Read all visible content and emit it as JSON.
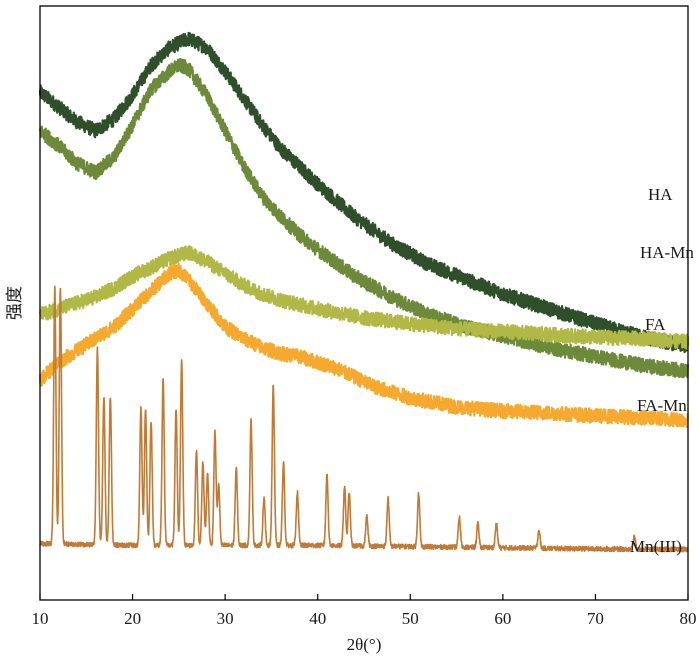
{
  "chart_data": {
    "type": "line",
    "title": "",
    "xlabel": "2θ(°)",
    "ylabel": "强度",
    "xlim": [
      10,
      80
    ],
    "x_ticks": [
      10,
      20,
      30,
      40,
      50,
      60,
      70,
      80
    ],
    "y_ticks_shown": false,
    "grid": false,
    "legend": "inline labels at right end of each trace",
    "series": [
      {
        "name": "HA",
        "color": "#2e4f2a",
        "points": [
          [
            10,
            0.855
          ],
          [
            12,
            0.83
          ],
          [
            14,
            0.805
          ],
          [
            16,
            0.79
          ],
          [
            18,
            0.81
          ],
          [
            20,
            0.85
          ],
          [
            22,
            0.9
          ],
          [
            24,
            0.93
          ],
          [
            26,
            0.945
          ],
          [
            28,
            0.93
          ],
          [
            30,
            0.89
          ],
          [
            32,
            0.845
          ],
          [
            34,
            0.8
          ],
          [
            36,
            0.76
          ],
          [
            38,
            0.73
          ],
          [
            40,
            0.7
          ],
          [
            44,
            0.645
          ],
          [
            48,
            0.6
          ],
          [
            52,
            0.565
          ],
          [
            56,
            0.54
          ],
          [
            60,
            0.515
          ],
          [
            65,
            0.49
          ],
          [
            70,
            0.465
          ],
          [
            75,
            0.443
          ],
          [
            80,
            0.427
          ]
        ]
      },
      {
        "name": "HA-Mn",
        "color": "#6d8a3a",
        "points": [
          [
            10,
            0.79
          ],
          [
            12,
            0.765
          ],
          [
            14,
            0.735
          ],
          [
            16,
            0.72
          ],
          [
            18,
            0.745
          ],
          [
            20,
            0.8
          ],
          [
            22,
            0.86
          ],
          [
            24,
            0.89
          ],
          [
            25,
            0.9
          ],
          [
            26,
            0.895
          ],
          [
            28,
            0.85
          ],
          [
            30,
            0.79
          ],
          [
            32,
            0.73
          ],
          [
            34,
            0.68
          ],
          [
            36,
            0.645
          ],
          [
            38,
            0.615
          ],
          [
            40,
            0.59
          ],
          [
            44,
            0.545
          ],
          [
            48,
            0.51
          ],
          [
            52,
            0.48
          ],
          [
            56,
            0.46
          ],
          [
            60,
            0.445
          ],
          [
            65,
            0.425
          ],
          [
            70,
            0.41
          ],
          [
            75,
            0.395
          ],
          [
            80,
            0.385
          ]
        ]
      },
      {
        "name": "FA",
        "color": "#b2b845",
        "points": [
          [
            10,
            0.48
          ],
          [
            12,
            0.49
          ],
          [
            14,
            0.5
          ],
          [
            16,
            0.51
          ],
          [
            18,
            0.525
          ],
          [
            20,
            0.545
          ],
          [
            22,
            0.56
          ],
          [
            24,
            0.575
          ],
          [
            26,
            0.585
          ],
          [
            28,
            0.57
          ],
          [
            30,
            0.55
          ],
          [
            32,
            0.53
          ],
          [
            34,
            0.515
          ],
          [
            36,
            0.505
          ],
          [
            40,
            0.49
          ],
          [
            45,
            0.475
          ],
          [
            50,
            0.465
          ],
          [
            55,
            0.457
          ],
          [
            60,
            0.452
          ],
          [
            65,
            0.447
          ],
          [
            70,
            0.442
          ],
          [
            75,
            0.44
          ],
          [
            80,
            0.435
          ]
        ]
      },
      {
        "name": "FA-Mn",
        "color": "#f5a92f",
        "points": [
          [
            10,
            0.37
          ],
          [
            12,
            0.4
          ],
          [
            14,
            0.42
          ],
          [
            16,
            0.44
          ],
          [
            18,
            0.46
          ],
          [
            20,
            0.49
          ],
          [
            22,
            0.52
          ],
          [
            24,
            0.55
          ],
          [
            25,
            0.555
          ],
          [
            26,
            0.54
          ],
          [
            28,
            0.5
          ],
          [
            30,
            0.46
          ],
          [
            32,
            0.44
          ],
          [
            34,
            0.425
          ],
          [
            36,
            0.415
          ],
          [
            38,
            0.41
          ],
          [
            40,
            0.4
          ],
          [
            42,
            0.39
          ],
          [
            44,
            0.375
          ],
          [
            46,
            0.36
          ],
          [
            48,
            0.35
          ],
          [
            50,
            0.34
          ],
          [
            55,
            0.325
          ],
          [
            60,
            0.318
          ],
          [
            65,
            0.315
          ],
          [
            70,
            0.31
          ],
          [
            75,
            0.307
          ],
          [
            80,
            0.303
          ]
        ]
      },
      {
        "name": "Mn(III)",
        "color": "#c07a35",
        "baseline": [
          [
            10,
            0.095
          ],
          [
            20,
            0.092
          ],
          [
            30,
            0.092
          ],
          [
            40,
            0.092
          ],
          [
            50,
            0.09
          ],
          [
            60,
            0.088
          ],
          [
            70,
            0.086
          ],
          [
            80,
            0.085
          ]
        ],
        "peaks": [
          [
            11.6,
            0.43
          ],
          [
            12.2,
            0.43
          ],
          [
            16.2,
            0.33
          ],
          [
            16.9,
            0.25
          ],
          [
            17.6,
            0.25
          ],
          [
            20.9,
            0.23
          ],
          [
            21.4,
            0.23
          ],
          [
            22.0,
            0.21
          ],
          [
            23.3,
            0.28
          ],
          [
            24.7,
            0.23
          ],
          [
            25.3,
            0.31
          ],
          [
            26.9,
            0.16
          ],
          [
            27.6,
            0.14
          ],
          [
            28.1,
            0.12
          ],
          [
            28.9,
            0.19
          ],
          [
            29.3,
            0.1
          ],
          [
            31.2,
            0.13
          ],
          [
            32.8,
            0.21
          ],
          [
            34.2,
            0.08
          ],
          [
            35.2,
            0.27
          ],
          [
            36.3,
            0.14
          ],
          [
            37.8,
            0.09
          ],
          [
            41.0,
            0.12
          ],
          [
            42.9,
            0.1
          ],
          [
            43.4,
            0.09
          ],
          [
            45.3,
            0.05
          ],
          [
            47.6,
            0.08
          ],
          [
            50.9,
            0.09
          ],
          [
            55.3,
            0.05
          ],
          [
            57.3,
            0.04
          ],
          [
            59.3,
            0.04
          ],
          [
            63.9,
            0.03
          ],
          [
            74.2,
            0.02
          ]
        ]
      }
    ]
  }
}
